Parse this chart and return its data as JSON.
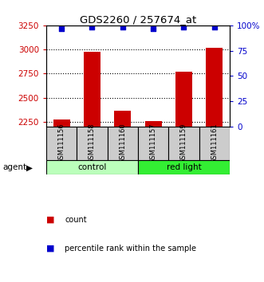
{
  "title": "GDS2260 / 257674_at",
  "samples": [
    "GSM111156",
    "GSM111158",
    "GSM111160",
    "GSM111157",
    "GSM111159",
    "GSM111161"
  ],
  "counts": [
    2270,
    2980,
    2360,
    2255,
    2770,
    3020
  ],
  "percentiles": [
    97,
    98,
    98,
    97,
    98,
    98
  ],
  "ylim_left": [
    2200,
    3250
  ],
  "ylim_right": [
    0,
    100
  ],
  "yticks_left": [
    2250,
    2500,
    2750,
    3000,
    3250
  ],
  "yticks_right": [
    0,
    25,
    50,
    75,
    100
  ],
  "ytick_right_labels": [
    "0",
    "25",
    "50",
    "75",
    "100%"
  ],
  "bar_color": "#cc0000",
  "dot_color": "#0000cc",
  "groups": [
    {
      "label": "control",
      "indices": [
        0,
        1,
        2
      ],
      "color": "#bbffbb"
    },
    {
      "label": "red light",
      "indices": [
        3,
        4,
        5
      ],
      "color": "#33ee33"
    }
  ],
  "agent_label": "agent",
  "legend_count_label": "count",
  "legend_percentile_label": "percentile rank within the sample",
  "background_color": "#ffffff",
  "plot_bg_color": "#ffffff",
  "sample_box_color": "#cccccc",
  "bar_width": 0.55
}
